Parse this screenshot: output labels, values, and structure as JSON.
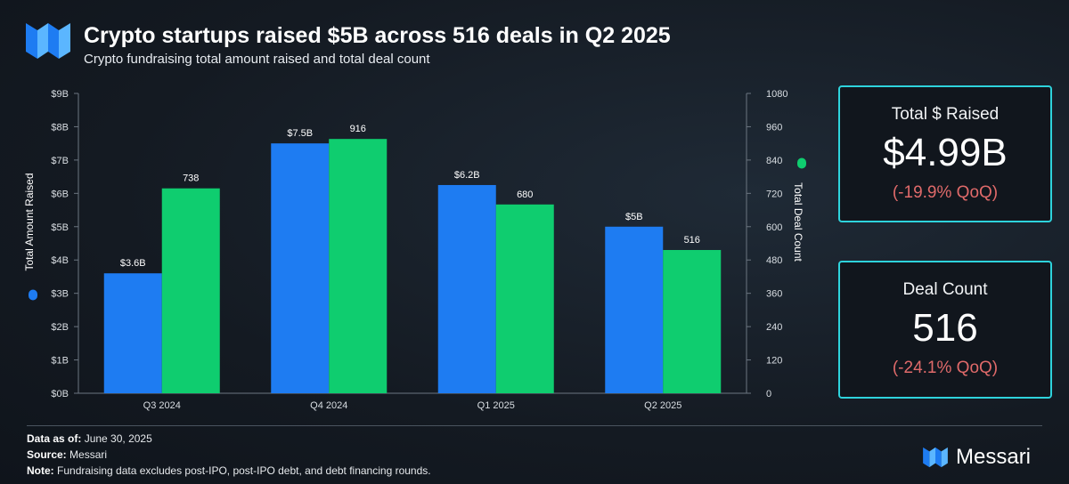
{
  "header": {
    "title": "Crypto startups raised $5B across 516 deals in Q2 2025",
    "subtitle": "Crypto fundraising total amount raised and total deal count"
  },
  "colors": {
    "amount": "#1e7cf2",
    "deals": "#0fcd6f",
    "accent": "#2ed3dc",
    "negative": "#e06a6a"
  },
  "chart_data": {
    "type": "bar",
    "title": "Crypto fundraising total amount raised and total deal count",
    "categories": [
      "Q3 2024",
      "Q4 2024",
      "Q1 2025",
      "Q2 2025"
    ],
    "series": [
      {
        "name": "Total Amount Raised",
        "axis": "left",
        "values": [
          3.6,
          7.5,
          6.25,
          5.0
        ],
        "labels": [
          "$3.6B",
          "$7.5B",
          "$6.2B",
          "$5B"
        ]
      },
      {
        "name": "Total Deal Count",
        "axis": "right",
        "values": [
          738,
          916,
          680,
          516
        ],
        "labels": [
          "738",
          "916",
          "680",
          "516"
        ]
      }
    ],
    "y_left": {
      "label": "Total Amount Raised",
      "ylim": [
        0,
        9
      ],
      "ticks": [
        0,
        1,
        2,
        3,
        4,
        5,
        6,
        7,
        8,
        9
      ],
      "tick_labels": [
        "$0B",
        "$1B",
        "$2B",
        "$3B",
        "$4B",
        "$5B",
        "$6B",
        "$7B",
        "$8B",
        "$9B"
      ]
    },
    "y_right": {
      "label": "Total Deal Count",
      "ylim": [
        0,
        1080
      ],
      "ticks": [
        0,
        120,
        240,
        360,
        480,
        600,
        720,
        840,
        960,
        1080
      ],
      "tick_labels": [
        "0",
        "120",
        "240",
        "360",
        "480",
        "600",
        "720",
        "840",
        "960",
        "1080"
      ]
    },
    "grid": false
  },
  "cards": {
    "raised": {
      "label": "Total $ Raised",
      "value": "$4.99B",
      "change": "(-19.9% QoQ)"
    },
    "deals": {
      "label": "Deal Count",
      "value": "516",
      "change": "(-24.1% QoQ)"
    }
  },
  "footer": {
    "data_as_of_label": "Data as of:",
    "data_as_of": "June 30, 2025",
    "source_label": "Source:",
    "source": "Messari",
    "note_label": "Note:",
    "note": "Fundraising data excludes post-IPO, post-IPO debt, and debt financing rounds."
  },
  "brand": {
    "name": "Messari"
  }
}
